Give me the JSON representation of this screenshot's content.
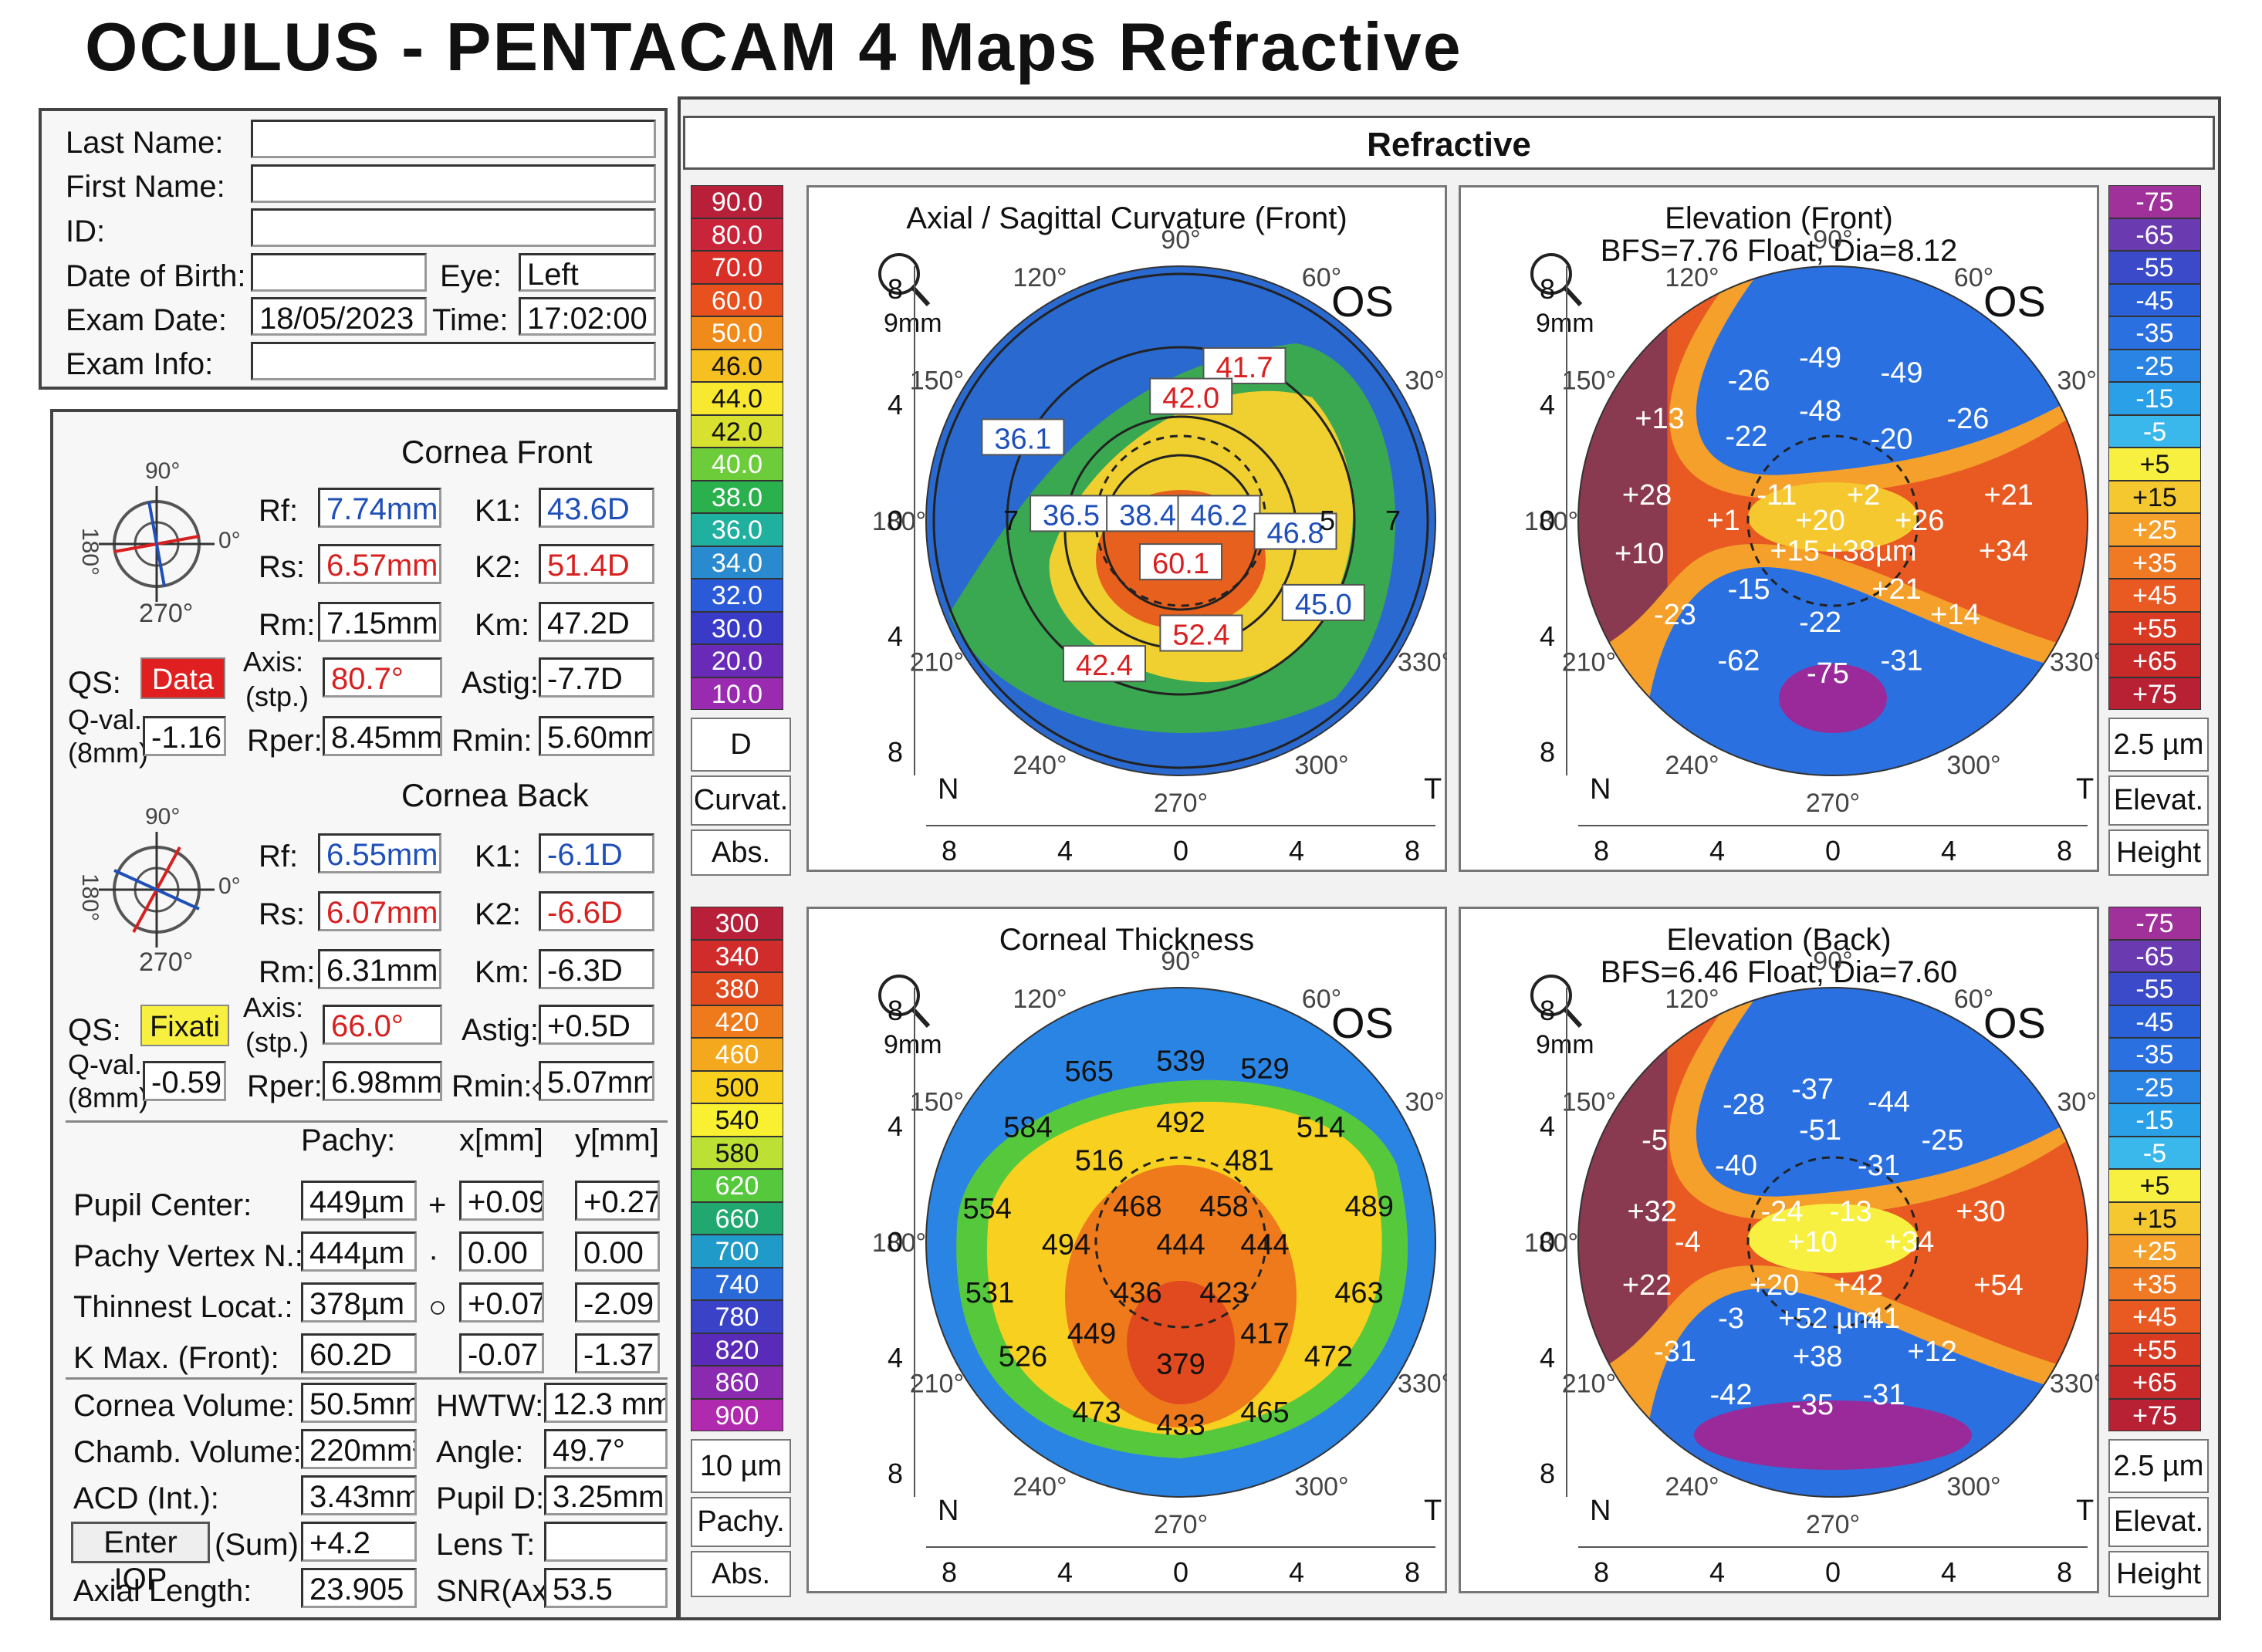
{
  "title": "OCULUS - PENTACAM 4 Maps Refractive",
  "patient": {
    "last_name_label": "Last Name:",
    "first_name_label": "First Name:",
    "id_label": "ID:",
    "dob_label": "Date of Birth:",
    "eye_label": "Eye:",
    "eye_value": "Left",
    "exam_date_label": "Exam Date:",
    "exam_date": "18/05/2023",
    "time_label": "Time:",
    "time": "17:02:00",
    "exam_info_label": "Exam Info:"
  },
  "cornea_front": {
    "title": "Cornea Front",
    "angle_top": "90°",
    "angle_left": "180°",
    "angle_right": "0°",
    "angle_bottom": "270°",
    "rf_label": "Rf:",
    "rf": "7.74mm",
    "k1_label": "K1:",
    "k1": "43.6D",
    "rs_label": "Rs:",
    "rs": "6.57mm",
    "k2_label": "K2:",
    "k2": "51.4D",
    "rm_label": "Rm:",
    "rm": "7.15mm",
    "km_label": "Km:",
    "km": "47.2D",
    "qs_label": "QS:",
    "qs": "Data",
    "axis_label": "Axis:",
    "axis_sub": "(stp.)",
    "axis": "80.7°",
    "astig_label": "Astig:",
    "astig": "-7.7D",
    "qval_label": "Q-val.",
    "qval_sub": "(8mm)",
    "qval": "-1.16",
    "rper_label": "Rper:",
    "rper": "8.45mm",
    "rmin_label": "Rmin:",
    "rmin": "5.60mm"
  },
  "cornea_back": {
    "title": "Cornea Back",
    "angle_top": "90°",
    "angle_left": "180°",
    "angle_right": "0°",
    "angle_bottom": "270°",
    "rf_label": "Rf:",
    "rf": "6.55mm",
    "k1_label": "K1:",
    "k1": "-6.1D",
    "rs_label": "Rs:",
    "rs": "6.07mm",
    "k2_label": "K2:",
    "k2": "-6.6D",
    "rm_label": "Rm:",
    "rm": "6.31mm",
    "km_label": "Km:",
    "km": "-6.3D",
    "qs_label": "QS:",
    "qs": "Fixati",
    "axis_label": "Axis:",
    "axis_sub": "(stp.)",
    "axis": "66.0°",
    "astig_label": "Astig:",
    "astig": "+0.5D",
    "qval_label": "Q-val.",
    "qval_sub": "(8mm)",
    "qval": "-0.59",
    "rper_label": "Rper:",
    "rper": "6.98mm",
    "rmin_label": "Rmin:◇",
    "rmin": "5.07mm"
  },
  "pachy": {
    "col_pachy": "Pachy:",
    "col_x": "x[mm]",
    "col_y": "y[mm]",
    "rows": [
      {
        "label": "Pupil Center:",
        "sym": "+",
        "pachy": "449µm",
        "x": "+0.09",
        "y": "+0.27"
      },
      {
        "label": "Pachy Vertex N.:",
        "sym": "·",
        "pachy": "444µm",
        "x": "0.00",
        "y": "0.00"
      },
      {
        "label": "Thinnest Locat.:",
        "sym": "○",
        "pachy": "378µm",
        "x": "+0.07",
        "y": "-2.09"
      },
      {
        "label": "K Max. (Front):",
        "sym": "",
        "pachy": "60.2D",
        "x": "-0.07",
        "y": "-1.37"
      }
    ]
  },
  "metrics": {
    "cv_label": "Cornea Volume:",
    "cv": "50.5mm³",
    "hwtw_label": "HWTW:",
    "hwtw": "12.3 mm",
    "chv_label": "Chamb. Volume:",
    "chv": "220mm³",
    "angle_label": "Angle:",
    "angle": "49.7°",
    "acd_label": "ACD (Int.):",
    "acd": "3.43mm",
    "pupil_label": "Pupil D:",
    "pupil": "3.25mm",
    "iop_button": "Enter IOP",
    "iop_label": "(Sum):",
    "iop": "+4.2",
    "lens_label": "Lens T:",
    "lens": "",
    "al_label": "Axial Length:",
    "al": "23.905",
    "snr_label": "SNR(Ax):",
    "snr": "53.5"
  },
  "refractive_header": "Refractive",
  "scales": {
    "curv": {
      "values": [
        "90.0",
        "80.0",
        "70.0",
        "60.0",
        "50.0",
        "46.0",
        "44.0",
        "42.0",
        "40.0",
        "38.0",
        "36.0",
        "34.0",
        "32.0",
        "30.0",
        "20.0",
        "10.0"
      ],
      "colors": [
        "#b8203a",
        "#c8243a",
        "#d83028",
        "#e8501e",
        "#f08a1a",
        "#f6c020",
        "#f8e830",
        "#d8e030",
        "#6ccc3a",
        "#2ab04c",
        "#20b0a0",
        "#2a8ad0",
        "#2a5ad8",
        "#3a3ac8",
        "#6a2ab8",
        "#9a2ab0"
      ],
      "unit": "D",
      "type": "Curvat.",
      "mode": "Abs."
    },
    "pachy": {
      "values": [
        "300",
        "340",
        "380",
        "420",
        "460",
        "500",
        "540",
        "580",
        "620",
        "660",
        "700",
        "740",
        "780",
        "820",
        "860",
        "900"
      ],
      "colors": [
        "#b8203a",
        "#d02c2c",
        "#e04a1e",
        "#ee7a1c",
        "#f4a81e",
        "#f8d020",
        "#f8f030",
        "#bce034",
        "#56c83c",
        "#20a870",
        "#209ac8",
        "#2a6ad8",
        "#3a42c8",
        "#5a2ab8",
        "#8a2ab0",
        "#b02ab0"
      ],
      "unit": "10 µm",
      "type": "Pachy.",
      "mode": "Abs."
    },
    "elev": {
      "values": [
        "-75",
        "-65",
        "-55",
        "-45",
        "-35",
        "-25",
        "-15",
        "-5",
        "+5",
        "+15",
        "+25",
        "+35",
        "+45",
        "+55",
        "+65",
        "+75"
      ],
      "colors": [
        "#a0309a",
        "#6a3ab0",
        "#3a4ac8",
        "#2a60d8",
        "#2a70e0",
        "#2a84e4",
        "#2aa0e8",
        "#3ab8ec",
        "#f8f040",
        "#f6c830",
        "#f4a02a",
        "#f07a24",
        "#e85a22",
        "#d83a22",
        "#c82a2a",
        "#b82034"
      ],
      "unit": "2.5 µm",
      "type": "Elevat.",
      "mode": "Height"
    }
  },
  "maps": {
    "common": {
      "zoom": "9mm",
      "eye": "OS",
      "deg_90": "90°",
      "deg_60": "60°",
      "deg_30": "30°",
      "deg_0": "0°",
      "deg_330": "330°",
      "deg_300": "300°",
      "deg_270": "270°",
      "deg_240": "240°",
      "deg_210": "210°",
      "deg_180": "180°",
      "deg_150": "150°",
      "deg_120": "120°",
      "n": "N",
      "t": "T",
      "ticks_h": [
        "8",
        "4",
        "0",
        "4",
        "8"
      ],
      "ticks_v": [
        "8",
        "4",
        "0",
        "4",
        "8"
      ]
    },
    "axial": {
      "title": "Axial / Sagittal Curvature (Front)",
      "labels": [
        "41.7",
        "42.0",
        "36.1",
        "36.5",
        "38.4",
        "46.2",
        "46.8",
        "60.1",
        "45.0",
        "52.4",
        "42.4"
      ],
      "ring": [
        "7",
        "5",
        "7"
      ]
    },
    "elev_front": {
      "title": "Elevation (Front)",
      "subtitle": "BFS=7.76 Float, Dia=8.12",
      "labels": [
        "-49",
        "-26",
        "-49",
        "+13",
        "-22",
        "-48",
        "-20",
        "-26",
        "+28",
        "-11",
        "+2",
        "+21",
        "+1",
        "+20",
        "+26",
        "+10",
        "+15",
        "+38µm",
        "+34",
        "-15",
        "+21",
        "-23",
        "-22",
        "+14",
        "-62",
        "-75",
        "-31"
      ]
    },
    "thickness": {
      "title": "Corneal Thickness",
      "labels": [
        "539",
        "565",
        "529",
        "584",
        "492",
        "514",
        "516",
        "481",
        "554",
        "468",
        "458",
        "489",
        "494",
        "444",
        "444",
        "531",
        "436",
        "423",
        "463",
        "449",
        "417",
        "526",
        "379",
        "472",
        "473",
        "433",
        "465"
      ]
    },
    "elev_back": {
      "title": "Elevation (Back)",
      "subtitle": "BFS=6.46 Float, Dia=7.60",
      "labels": [
        "-37",
        "-28",
        "-44",
        "-51",
        "-5",
        "-25",
        "-40",
        "-31",
        "+32",
        "-24",
        "-13",
        "+30",
        "-4",
        "+10",
        "+34",
        "+22",
        "+20",
        "+42",
        "+54",
        "-3",
        "+52 µm",
        "41",
        "+12",
        "-31",
        "+38",
        "-42",
        "-35",
        "-31"
      ]
    }
  }
}
